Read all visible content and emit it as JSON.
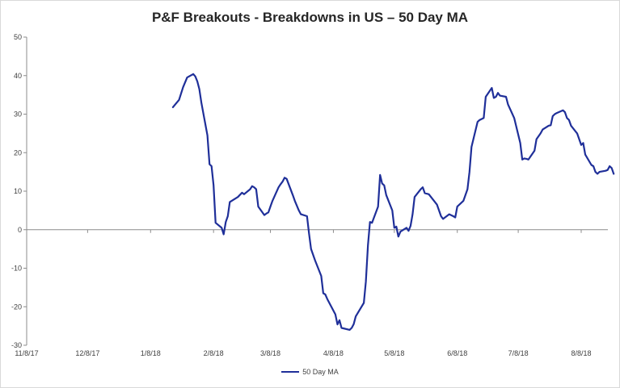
{
  "chart_data": {
    "type": "line",
    "title": "P&F Breakouts - Breakdowns in US – 50 Day MA",
    "xlabel": "",
    "ylabel": "",
    "ylim": [
      -30,
      50
    ],
    "yticks": [
      50,
      40,
      30,
      20,
      10,
      0,
      -10,
      -20,
      -30
    ],
    "x_tick_labels": [
      "11/8/17",
      "12/8/17",
      "1/8/18",
      "2/8/18",
      "3/8/18",
      "4/8/18",
      "5/8/18",
      "6/8/18",
      "7/8/18",
      "8/8/18"
    ],
    "x_tick_dates": [
      "2017-11-08",
      "2017-12-08",
      "2018-01-08",
      "2018-02-08",
      "2018-03-08",
      "2018-04-08",
      "2018-05-08",
      "2018-06-08",
      "2018-07-08",
      "2018-08-08"
    ],
    "grid": false,
    "legend": "bottom",
    "colors": {
      "series": "#1f2f99",
      "axis": "#8c8c8c"
    },
    "series": [
      {
        "name": "50 Day MA",
        "points": [
          [
            "2018-01-19",
            31.8
          ],
          [
            "2018-01-22",
            33.7
          ],
          [
            "2018-01-24",
            37.0
          ],
          [
            "2018-01-26",
            39.5
          ],
          [
            "2018-01-29",
            40.4
          ],
          [
            "2018-01-30",
            39.8
          ],
          [
            "2018-01-31",
            38.5
          ],
          [
            "2018-02-01",
            36.5
          ],
          [
            "2018-02-02",
            33.0
          ],
          [
            "2018-02-05",
            24.5
          ],
          [
            "2018-02-06",
            17.0
          ],
          [
            "2018-02-07",
            16.5
          ],
          [
            "2018-02-08",
            11.5
          ],
          [
            "2018-02-09",
            1.8
          ],
          [
            "2018-02-12",
            0.5
          ],
          [
            "2018-02-13",
            -1.2
          ],
          [
            "2018-02-14",
            2.0
          ],
          [
            "2018-02-15",
            3.5
          ],
          [
            "2018-02-16",
            7.2
          ],
          [
            "2018-02-20",
            8.5
          ],
          [
            "2018-02-22",
            9.6
          ],
          [
            "2018-02-23",
            9.2
          ],
          [
            "2018-02-26",
            10.5
          ],
          [
            "2018-02-27",
            11.3
          ],
          [
            "2018-02-28",
            11.0
          ],
          [
            "2018-03-01",
            10.5
          ],
          [
            "2018-03-02",
            6.0
          ],
          [
            "2018-03-05",
            3.8
          ],
          [
            "2018-03-06",
            4.2
          ],
          [
            "2018-03-07",
            4.5
          ],
          [
            "2018-03-08",
            6.0
          ],
          [
            "2018-03-09",
            7.5
          ],
          [
            "2018-03-12",
            11.0
          ],
          [
            "2018-03-13",
            11.8
          ],
          [
            "2018-03-14",
            12.5
          ],
          [
            "2018-03-15",
            13.5
          ],
          [
            "2018-03-16",
            13.2
          ],
          [
            "2018-03-19",
            9.0
          ],
          [
            "2018-03-20",
            7.5
          ],
          [
            "2018-03-22",
            5.0
          ],
          [
            "2018-03-23",
            4.0
          ],
          [
            "2018-03-26",
            3.5
          ],
          [
            "2018-03-27",
            -1.0
          ],
          [
            "2018-03-28",
            -5.0
          ],
          [
            "2018-03-30",
            -8.0
          ],
          [
            "2018-04-02",
            -12.0
          ],
          [
            "2018-04-03",
            -16.5
          ],
          [
            "2018-04-04",
            -16.8
          ],
          [
            "2018-04-05",
            -18.0
          ],
          [
            "2018-04-09",
            -22.0
          ],
          [
            "2018-04-10",
            -24.6
          ],
          [
            "2018-04-11",
            -23.5
          ],
          [
            "2018-04-12",
            -25.5
          ],
          [
            "2018-04-16",
            -26.0
          ],
          [
            "2018-04-17",
            -25.5
          ],
          [
            "2018-04-18",
            -24.5
          ],
          [
            "2018-04-19",
            -22.5
          ],
          [
            "2018-04-23",
            -19.0
          ],
          [
            "2018-04-24",
            -13.5
          ],
          [
            "2018-04-25",
            -4.0
          ],
          [
            "2018-04-26",
            2.0
          ],
          [
            "2018-04-27",
            1.8
          ],
          [
            "2018-04-30",
            6.0
          ],
          [
            "2018-05-01",
            14.2
          ],
          [
            "2018-05-02",
            12.0
          ],
          [
            "2018-05-03",
            11.5
          ],
          [
            "2018-05-04",
            9.0
          ],
          [
            "2018-05-07",
            5.0
          ],
          [
            "2018-05-08",
            0.5
          ],
          [
            "2018-05-09",
            0.8
          ],
          [
            "2018-05-10",
            -1.8
          ],
          [
            "2018-05-11",
            -0.5
          ],
          [
            "2018-05-14",
            0.5
          ],
          [
            "2018-05-15",
            -0.3
          ],
          [
            "2018-05-16",
            1.0
          ],
          [
            "2018-05-17",
            4.0
          ],
          [
            "2018-05-18",
            8.5
          ],
          [
            "2018-05-21",
            10.5
          ],
          [
            "2018-05-22",
            11.0
          ],
          [
            "2018-05-23",
            9.5
          ],
          [
            "2018-05-25",
            9.2
          ],
          [
            "2018-05-29",
            6.5
          ],
          [
            "2018-05-31",
            3.5
          ],
          [
            "2018-06-01",
            2.8
          ],
          [
            "2018-06-04",
            4.0
          ],
          [
            "2018-06-06",
            3.5
          ],
          [
            "2018-06-07",
            3.2
          ],
          [
            "2018-06-08",
            6.0
          ],
          [
            "2018-06-11",
            7.5
          ],
          [
            "2018-06-13",
            10.5
          ],
          [
            "2018-06-14",
            15.0
          ],
          [
            "2018-06-15",
            21.5
          ],
          [
            "2018-06-18",
            28.0
          ],
          [
            "2018-06-19",
            28.5
          ],
          [
            "2018-06-21",
            29.0
          ],
          [
            "2018-06-22",
            34.5
          ],
          [
            "2018-06-25",
            36.8
          ],
          [
            "2018-06-26",
            34.2
          ],
          [
            "2018-06-27",
            34.5
          ],
          [
            "2018-06-28",
            35.5
          ],
          [
            "2018-06-29",
            34.8
          ],
          [
            "2018-07-02",
            34.5
          ],
          [
            "2018-07-03",
            32.5
          ],
          [
            "2018-07-06",
            29.0
          ],
          [
            "2018-07-09",
            22.5
          ],
          [
            "2018-07-10",
            18.2
          ],
          [
            "2018-07-11",
            18.5
          ],
          [
            "2018-07-12",
            18.4
          ],
          [
            "2018-07-13",
            18.2
          ],
          [
            "2018-07-16",
            20.5
          ],
          [
            "2018-07-17",
            23.5
          ],
          [
            "2018-07-19",
            25.0
          ],
          [
            "2018-07-20",
            26.0
          ],
          [
            "2018-07-23",
            27.0
          ],
          [
            "2018-07-24",
            27.1
          ],
          [
            "2018-07-25",
            29.5
          ],
          [
            "2018-07-26",
            30.0
          ],
          [
            "2018-07-27",
            30.3
          ],
          [
            "2018-07-30",
            31.0
          ],
          [
            "2018-07-31",
            30.5
          ],
          [
            "2018-08-01",
            29.0
          ],
          [
            "2018-08-02",
            28.5
          ],
          [
            "2018-08-03",
            27.0
          ],
          [
            "2018-08-06",
            25.0
          ],
          [
            "2018-08-07",
            23.5
          ],
          [
            "2018-08-08",
            22.0
          ],
          [
            "2018-08-09",
            22.5
          ],
          [
            "2018-08-10",
            19.5
          ],
          [
            "2018-08-13",
            16.8
          ],
          [
            "2018-08-14",
            16.5
          ],
          [
            "2018-08-15",
            15.0
          ],
          [
            "2018-08-16",
            14.5
          ],
          [
            "2018-08-17",
            15.0
          ],
          [
            "2018-08-20",
            15.3
          ],
          [
            "2018-08-21",
            15.5
          ],
          [
            "2018-08-22",
            16.5
          ],
          [
            "2018-08-23",
            16.0
          ],
          [
            "2018-08-24",
            14.5
          ]
        ]
      }
    ]
  }
}
